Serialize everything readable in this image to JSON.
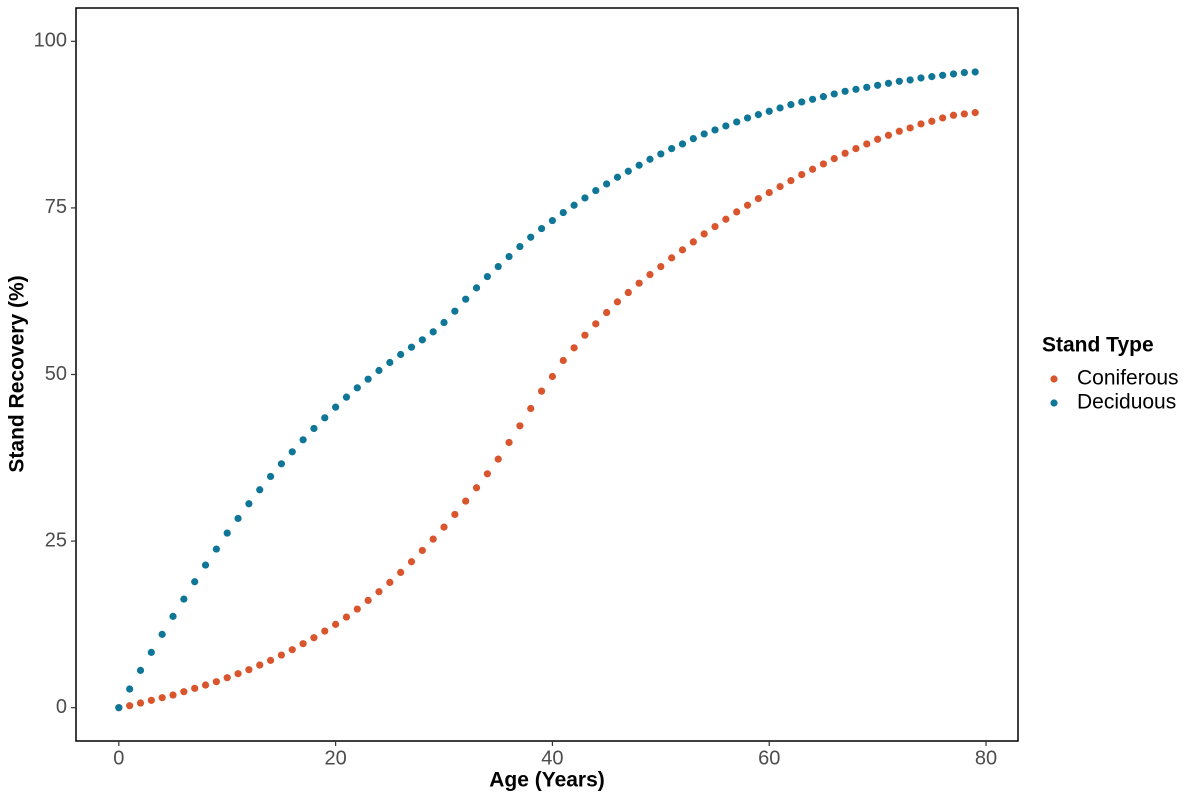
{
  "chart_data": {
    "type": "scatter",
    "x_label": "Age (Years)",
    "y_label": "Stand Recovery (%)",
    "legend_title": "Stand Type",
    "x": [
      0,
      1,
      2,
      3,
      4,
      5,
      6,
      7,
      8,
      9,
      10,
      11,
      12,
      13,
      14,
      15,
      16,
      17,
      18,
      19,
      20,
      21,
      22,
      23,
      24,
      25,
      26,
      27,
      28,
      29,
      30,
      31,
      32,
      33,
      34,
      35,
      36,
      37,
      38,
      39,
      40,
      41,
      42,
      43,
      44,
      45,
      46,
      47,
      48,
      49,
      50,
      51,
      52,
      53,
      54,
      55,
      56,
      57,
      58,
      59,
      60,
      61,
      62,
      63,
      64,
      65,
      66,
      67,
      68,
      69,
      70,
      71,
      72,
      73,
      74,
      75,
      76,
      77,
      78,
      79
    ],
    "series": [
      {
        "name": "Coniferous",
        "color": "#d9552e",
        "values": [
          0,
          0.3,
          0.7,
          1.1,
          1.5,
          1.9,
          2.4,
          2.9,
          3.4,
          3.9,
          4.5,
          5.1,
          5.7,
          6.4,
          7.1,
          7.9,
          8.7,
          9.6,
          10.5,
          11.5,
          12.5,
          13.6,
          14.8,
          16.1,
          17.4,
          18.8,
          20.3,
          21.9,
          23.6,
          25.3,
          27.1,
          29.0,
          31.0,
          33.0,
          35.1,
          37.3,
          39.8,
          42.3,
          44.9,
          47.5,
          49.7,
          52.1,
          54.0,
          55.9,
          57.6,
          59.3,
          60.9,
          62.3,
          63.7,
          65.0,
          66.2,
          67.5,
          68.7,
          69.9,
          71.1,
          72.2,
          73.3,
          74.4,
          75.4,
          76.4,
          77.3,
          78.2,
          79.1,
          80.0,
          80.8,
          81.6,
          82.4,
          83.2,
          83.9,
          84.6,
          85.3,
          85.9,
          86.5,
          87.0,
          87.6,
          88.0,
          88.5,
          88.9,
          89.1,
          89.3
        ]
      },
      {
        "name": "Deciduous",
        "color": "#0f7698",
        "values": [
          0,
          2.8,
          5.6,
          8.3,
          11.0,
          13.7,
          16.3,
          18.9,
          21.4,
          23.8,
          26.2,
          28.4,
          30.6,
          32.7,
          34.7,
          36.6,
          38.4,
          40.2,
          41.9,
          43.5,
          45.1,
          46.6,
          48.0,
          49.3,
          50.6,
          51.8,
          53.0,
          54.1,
          55.2,
          56.4,
          57.8,
          59.5,
          61.3,
          63.0,
          64.7,
          66.2,
          67.7,
          69.2,
          70.6,
          71.9,
          73.1,
          74.3,
          75.4,
          76.5,
          77.6,
          78.6,
          79.6,
          80.5,
          81.4,
          82.3,
          83.1,
          83.9,
          84.6,
          85.4,
          86.1,
          86.7,
          87.3,
          87.9,
          88.5,
          89.0,
          89.5,
          90.0,
          90.5,
          90.9,
          91.3,
          91.7,
          92.1,
          92.5,
          92.8,
          93.1,
          93.4,
          93.7,
          94.0,
          94.2,
          94.5,
          94.7,
          94.9,
          95.1,
          95.3,
          95.4
        ]
      }
    ],
    "xlim": [
      -3.95,
      82.95
    ],
    "xticks": [
      0,
      20,
      40,
      60,
      80
    ],
    "ylim": [
      -5,
      105
    ],
    "yticks": [
      0,
      25,
      50,
      75,
      100
    ]
  }
}
